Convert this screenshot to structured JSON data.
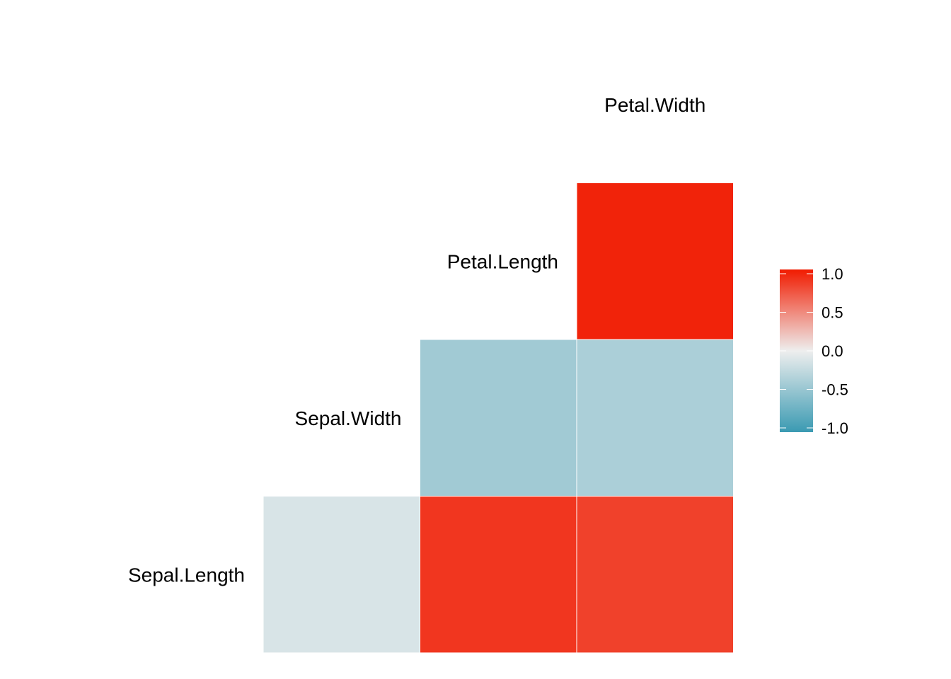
{
  "chart_data": {
    "type": "heatmap",
    "title": "",
    "variables": [
      "Sepal.Length",
      "Sepal.Width",
      "Petal.Length",
      "Petal.Width"
    ],
    "cells": [
      {
        "row": "Sepal.Length",
        "col": "Sepal.Width",
        "value": -0.12
      },
      {
        "row": "Sepal.Length",
        "col": "Petal.Length",
        "value": 0.87
      },
      {
        "row": "Sepal.Length",
        "col": "Petal.Width",
        "value": 0.82
      },
      {
        "row": "Sepal.Width",
        "col": "Petal.Length",
        "value": -0.43
      },
      {
        "row": "Sepal.Width",
        "col": "Petal.Width",
        "value": -0.37
      },
      {
        "row": "Petal.Length",
        "col": "Petal.Width",
        "value": 0.96
      }
    ],
    "legend": {
      "position": "right",
      "limits": [
        -1,
        1
      ],
      "breaks": [
        1.0,
        0.5,
        0.0,
        -0.5,
        -1.0
      ],
      "labels": [
        "1.0",
        "0.5",
        "0.0",
        "-0.5",
        "-1.0"
      ],
      "colors": {
        "low": "#3A9AB2",
        "mid": "#EEEEEE",
        "high": "#F11B00"
      }
    }
  }
}
